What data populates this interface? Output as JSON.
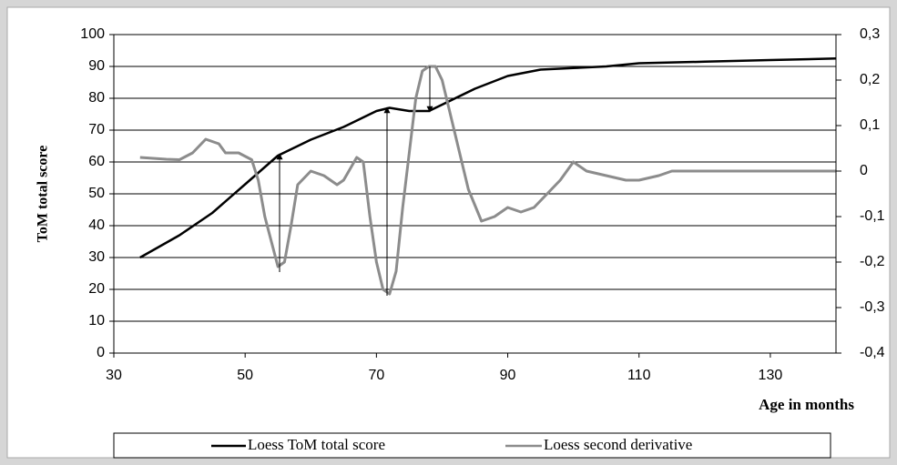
{
  "chart_data": {
    "type": "line",
    "ylabel": "ToM total score",
    "xlabel": "Age in months",
    "xlim": [
      30,
      140
    ],
    "xticks": [
      30,
      50,
      70,
      90,
      110,
      130
    ],
    "ylim": [
      0,
      100
    ],
    "yticks": [
      0,
      10,
      20,
      30,
      40,
      50,
      60,
      70,
      80,
      90,
      100
    ],
    "y2lim": [
      -0.4,
      0.3
    ],
    "y2ticks": [
      {
        "value": -0.4,
        "label": "-0,4"
      },
      {
        "value": -0.3,
        "label": "-0,3"
      },
      {
        "value": -0.2,
        "label": "-0,2"
      },
      {
        "value": -0.1,
        "label": "-0,1"
      },
      0,
      {
        "value": 0.1,
        "label": "0,1"
      },
      {
        "value": 0.2,
        "label": "0,2"
      },
      {
        "value": 0.3,
        "label": "0,3"
      }
    ],
    "grid": true,
    "series": [
      {
        "name": "Loess ToM total score",
        "color": "#000000",
        "x": [
          34,
          40,
          45,
          50,
          55,
          58,
          60,
          65,
          70,
          72,
          75,
          78,
          80,
          85,
          90,
          95,
          100,
          105,
          110,
          120,
          130,
          140
        ],
        "values": [
          30,
          37,
          44,
          53,
          62,
          65,
          67,
          71,
          76,
          77,
          76,
          76,
          78,
          83,
          87,
          89,
          89.5,
          90,
          91,
          91.5,
          92,
          92.5
        ]
      },
      {
        "name": "Loess second derivative",
        "color": "#8c8c8c",
        "axis": "y2",
        "x": [
          34,
          38,
          40,
          42,
          44,
          46,
          47,
          49,
          51,
          52,
          53,
          55,
          56,
          57,
          58,
          60,
          62,
          64,
          65,
          67,
          68,
          69,
          70,
          71,
          72,
          73,
          74,
          75,
          76,
          77,
          78,
          79,
          80,
          82,
          84,
          86,
          88,
          90,
          92,
          94,
          96,
          98,
          100,
          102,
          105,
          108,
          110,
          113,
          115,
          120,
          140
        ],
        "values": [
          0.03,
          0.026,
          0.025,
          0.04,
          0.07,
          0.06,
          0.04,
          0.04,
          0.025,
          -0.02,
          -0.1,
          -0.21,
          -0.2,
          -0.12,
          -0.03,
          0,
          -0.01,
          -0.03,
          -0.02,
          0.03,
          0.02,
          -0.1,
          -0.2,
          -0.26,
          -0.27,
          -0.22,
          -0.08,
          0.04,
          0.16,
          0.22,
          0.23,
          0.23,
          0.2,
          0.08,
          -0.04,
          -0.11,
          -0.1,
          -0.08,
          -0.09,
          -0.08,
          -0.05,
          -0.02,
          0.02,
          0,
          -0.01,
          -0.02,
          -0.02,
          -0.01,
          0,
          0,
          0
        ]
      }
    ]
  }
}
